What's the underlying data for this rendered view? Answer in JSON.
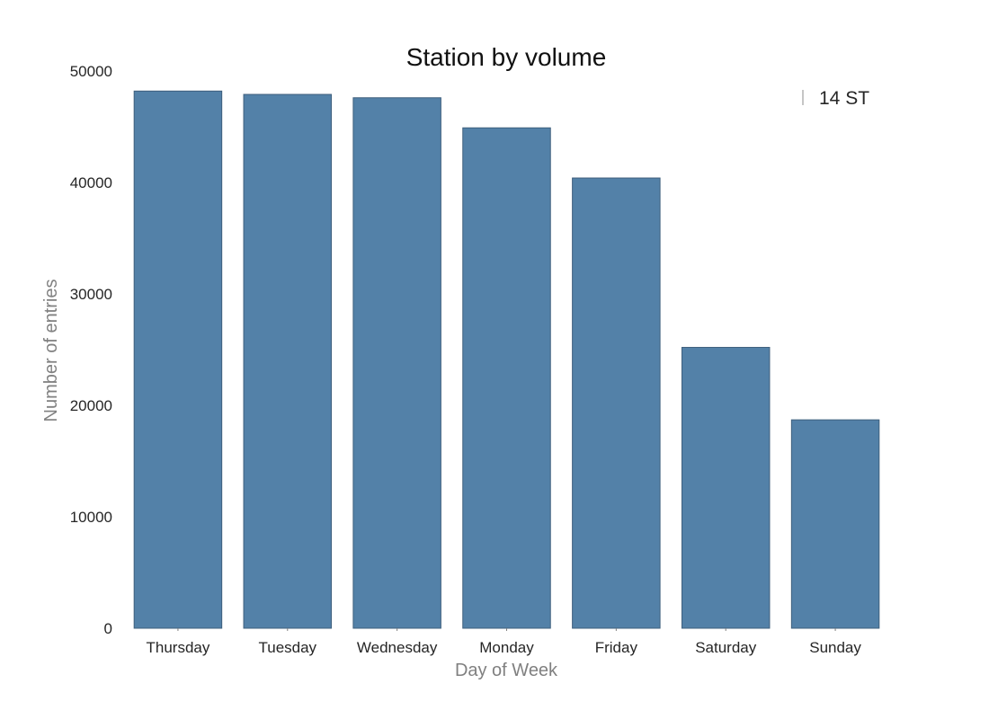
{
  "chart_data": {
    "type": "bar",
    "title": "Station by volume",
    "xlabel": "Day of Week",
    "ylabel": "Number of entries",
    "categories": [
      "Thursday",
      "Tuesday",
      "Wednesday",
      "Monday",
      "Friday",
      "Saturday",
      "Sunday"
    ],
    "series": [
      {
        "name": "14 ST",
        "values": [
          48200,
          47900,
          47600,
          44900,
          40400,
          25200,
          18700
        ]
      }
    ],
    "ylim": [
      0,
      50000
    ],
    "yticks": [
      "0",
      "10000",
      "20000",
      "30000",
      "40000",
      "50000"
    ],
    "grid": false,
    "legend_position": "top-right",
    "colors": {
      "bar": "#5381a8",
      "bar_edge": "#3e5f7d",
      "legend_marker": "#b3b3b3"
    }
  }
}
